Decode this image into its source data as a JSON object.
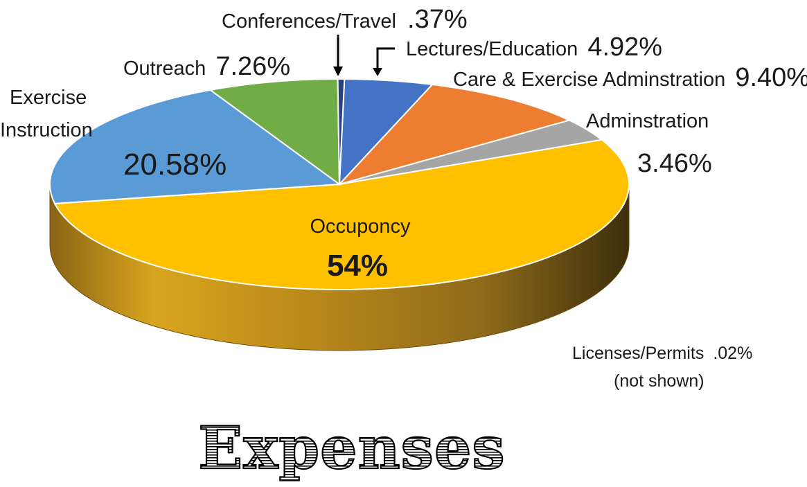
{
  "chart_data": {
    "type": "pie",
    "title": "Expenses",
    "slices": [
      {
        "label": "Lectures/Education",
        "percent_text": "4.92%",
        "value": 4.92,
        "color": "#4472C4"
      },
      {
        "label": "Care  & Exercise Adminstration",
        "percent_text": "9.40%",
        "value": 9.4,
        "color": "#ED7D31"
      },
      {
        "label": "Adminstration",
        "percent_text": "3.46%",
        "value": 3.46,
        "color": "#A5A5A5"
      },
      {
        "label": "Occuponcy",
        "percent_text": "54%",
        "value": 54,
        "color": "#FFC000"
      },
      {
        "label": "Licenses/Permits",
        "percent_text": ".02%",
        "value": 0.02,
        "color": "#FFC000"
      },
      {
        "label": "Exercise Instruction",
        "percent_text": "20.58%",
        "value": 20.58,
        "color": "#5B9BD5"
      },
      {
        "label": "Outreach",
        "percent_text": "7.26%",
        "value": 7.26,
        "color": "#70AD47"
      },
      {
        "label": "Conferences/Travel",
        "percent_text": ".37%",
        "value": 0.37,
        "color": "#264478"
      }
    ],
    "notes": {
      "licenses_note": "(not shown)"
    }
  },
  "labels": {
    "conferences_name": "Conferences/Travel",
    "conferences_pct": ".37%",
    "lectures_name": "Lectures/Education",
    "lectures_pct": "4.92%",
    "care_name": "Care  & Exercise Adminstration",
    "care_pct": "9.40%",
    "admin_name": "Adminstration",
    "admin_pct": "3.46%",
    "outreach_name": "Outreach",
    "outreach_pct": "7.26%",
    "exercise_line1": "Exercise",
    "exercise_line2": "Instruction",
    "exercise_pct": "20.58%",
    "occupancy_name": "Occuponcy",
    "occupancy_pct": "54%",
    "licenses_name": "Licenses/Permits",
    "licenses_pct": ".02%",
    "licenses_note": "(not shown)",
    "title": "Expenses"
  }
}
